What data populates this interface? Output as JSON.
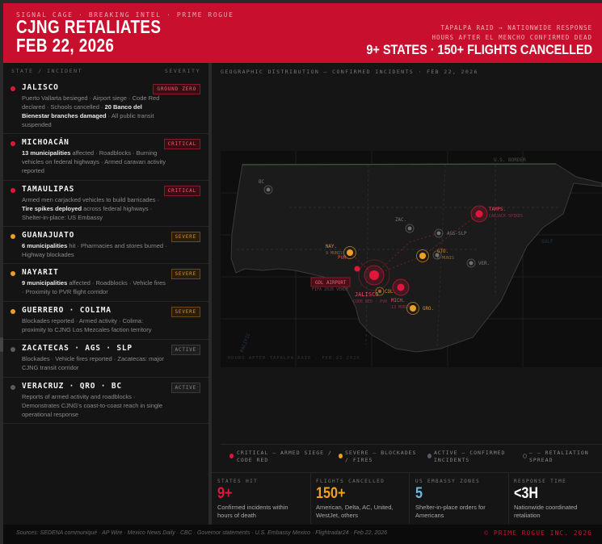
{
  "header": {
    "kicker": "SIGNAL CAGE · BREAKING INTEL · PRIME ROGUE",
    "title_line1": "CJNG RETALIATES",
    "title_line2": "FEB 22, 2026",
    "sub1": "TAPALPA RAID → NATIONWIDE RESPONSE",
    "sub2": "HOURS AFTER EL MENCHO CONFIRMED DEAD",
    "headline": "9+ STATES · 150+ FLIGHTS CANCELLED"
  },
  "colors": {
    "brand": "#c8102e",
    "critical": "#e0163c",
    "severe": "#f0a020",
    "active": "#5a5a6a",
    "embassy": "#6fb6e0"
  },
  "left": {
    "col1": "STATE / INCIDENT",
    "col2": "SEVERITY",
    "rows": [
      {
        "state": "JALISCO",
        "severity": "GROUND ZERO",
        "level": "critical",
        "desc": [
          {
            "t": "Puerto Vallarta besieged · Airport siege · Code Red declared · Schools cancelled · "
          },
          {
            "t": "20 Banco del Bienestar branches damaged",
            "b": true
          },
          {
            "t": " · All public transit suspended"
          }
        ]
      },
      {
        "state": "MICHOACÁN",
        "severity": "CRITICAL",
        "level": "critical",
        "desc": [
          {
            "t": "13 municipalities",
            "b": true
          },
          {
            "t": " affected · Roadblocks · Burning vehicles on federal highways · Armed caravan activity reported"
          }
        ]
      },
      {
        "state": "TAMAULIPAS",
        "severity": "CRITICAL",
        "level": "critical",
        "desc": [
          {
            "t": "Armed men carjacked vehicles to build barricades · "
          },
          {
            "t": "Tire spikes deployed",
            "b": true
          },
          {
            "t": " across federal highways · Shelter-in-place: US Embassy"
          }
        ]
      },
      {
        "state": "GUANAJUATO",
        "severity": "SEVERE",
        "level": "severe",
        "desc": [
          {
            "t": "6 municipalities",
            "b": true
          },
          {
            "t": " hit · Pharmacies and stores burned · Highway blockades"
          }
        ]
      },
      {
        "state": "NAYARIT",
        "severity": "SEVERE",
        "level": "severe",
        "desc": [
          {
            "t": "9 municipalities",
            "b": true
          },
          {
            "t": " affected · Roadblocks · Vehicle fires · Proximity to PVR flight corridor"
          }
        ]
      },
      {
        "state": "GUERRERO · COLIMA",
        "severity": "SEVERE",
        "level": "severe",
        "desc": [
          {
            "t": "Blockades reported · Armed activity · Colima: proximity to CJNG Los Mezcales faction territory"
          }
        ]
      },
      {
        "state": "ZACATECAS · AGS · SLP",
        "severity": "ACTIVE",
        "level": "active",
        "desc": [
          {
            "t": "Blockades · Vehicle fires reported · Zacatecas: major CJNG transit corridor"
          }
        ]
      },
      {
        "state": "VERACRUZ · QRO · BC",
        "severity": "ACTIVE",
        "level": "active",
        "desc": [
          {
            "t": "Reports of armed activity and roadblocks · Demonstrates CJNG's coast-to-coast reach in single operational response"
          }
        ]
      }
    ]
  },
  "map": {
    "title": "GEOGRAPHIC DISTRIBUTION — CONFIRMED INCIDENTS · FEB 22, 2026",
    "border_label": "U.S. BORDER",
    "gulf_label": "GULF",
    "pacific_label": "PACIFIC",
    "caption": "HOURS AFTER TAPALPA RAID · FEB 22 2026",
    "markers": [
      {
        "id": "bc",
        "label": "BC",
        "level": "active"
      },
      {
        "id": "zac",
        "label": "ZAC.",
        "level": "active"
      },
      {
        "id": "ags",
        "label": "AGS-SLP",
        "level": "active"
      },
      {
        "id": "tamps",
        "label": "TAMPS.",
        "sub": "CARJACK·SPIKES",
        "level": "critical"
      },
      {
        "id": "nay",
        "label": "NAY.",
        "sub": "9 MUNIS",
        "level": "severe"
      },
      {
        "id": "pvr",
        "label": "PVR",
        "level": "critical"
      },
      {
        "id": "gto",
        "label": "GTO.",
        "sub": "6 MUNIS",
        "level": "severe"
      },
      {
        "id": "qro",
        "label": "",
        "level": "active"
      },
      {
        "id": "ver",
        "label": "VER.",
        "level": "active"
      },
      {
        "id": "jal",
        "label": "JALISCO",
        "sub": "CODE RED · PVR",
        "level": "critical"
      },
      {
        "id": "col",
        "label": "COL.",
        "level": "severe"
      },
      {
        "id": "mich",
        "label": "MICH.",
        "sub": "13 MUNIS",
        "level": "critical"
      },
      {
        "id": "gro",
        "label": "GRO.",
        "level": "severe"
      }
    ],
    "airport": {
      "label": "GDL AIRPORT",
      "sub": "FIFA 2026 VENUE"
    }
  },
  "legend": [
    {
      "label": "CRITICAL — ARMED SIEGE / CODE RED"
    },
    {
      "label": "SEVERE — BLOCKADES / FIRES"
    },
    {
      "label": "ACTIVE — CONFIRMED INCIDENTS"
    },
    {
      "label": "— — RETALIATION SPREAD"
    }
  ],
  "stats": [
    {
      "label": "STATES HIT",
      "value": "9+",
      "desc": "Confirmed incidents within hours of death",
      "color": "#e0163c"
    },
    {
      "label": "FLIGHTS CANCELLED",
      "value": "150+",
      "desc": "American, Delta, AC, United, WestJet, others",
      "color": "#f0a020"
    },
    {
      "label": "US EMBASSY ZONES",
      "value": "5",
      "desc": "Shelter-in-place orders for Americans",
      "color": "#6fb6e0"
    },
    {
      "label": "RESPONSE TIME",
      "value": "<3H",
      "desc": "Nationwide coordinated retaliation",
      "color": "#ffffff"
    }
  ],
  "footer": {
    "sources": "Sources: SEDENA communiqué · AP Wire · Mexico News Daily · CBC · Governor statements · U.S. Embassy Mexico · Flightradar24 · Feb 22, 2026",
    "copyright": "© PRIME ROGUE INC. 2026"
  }
}
